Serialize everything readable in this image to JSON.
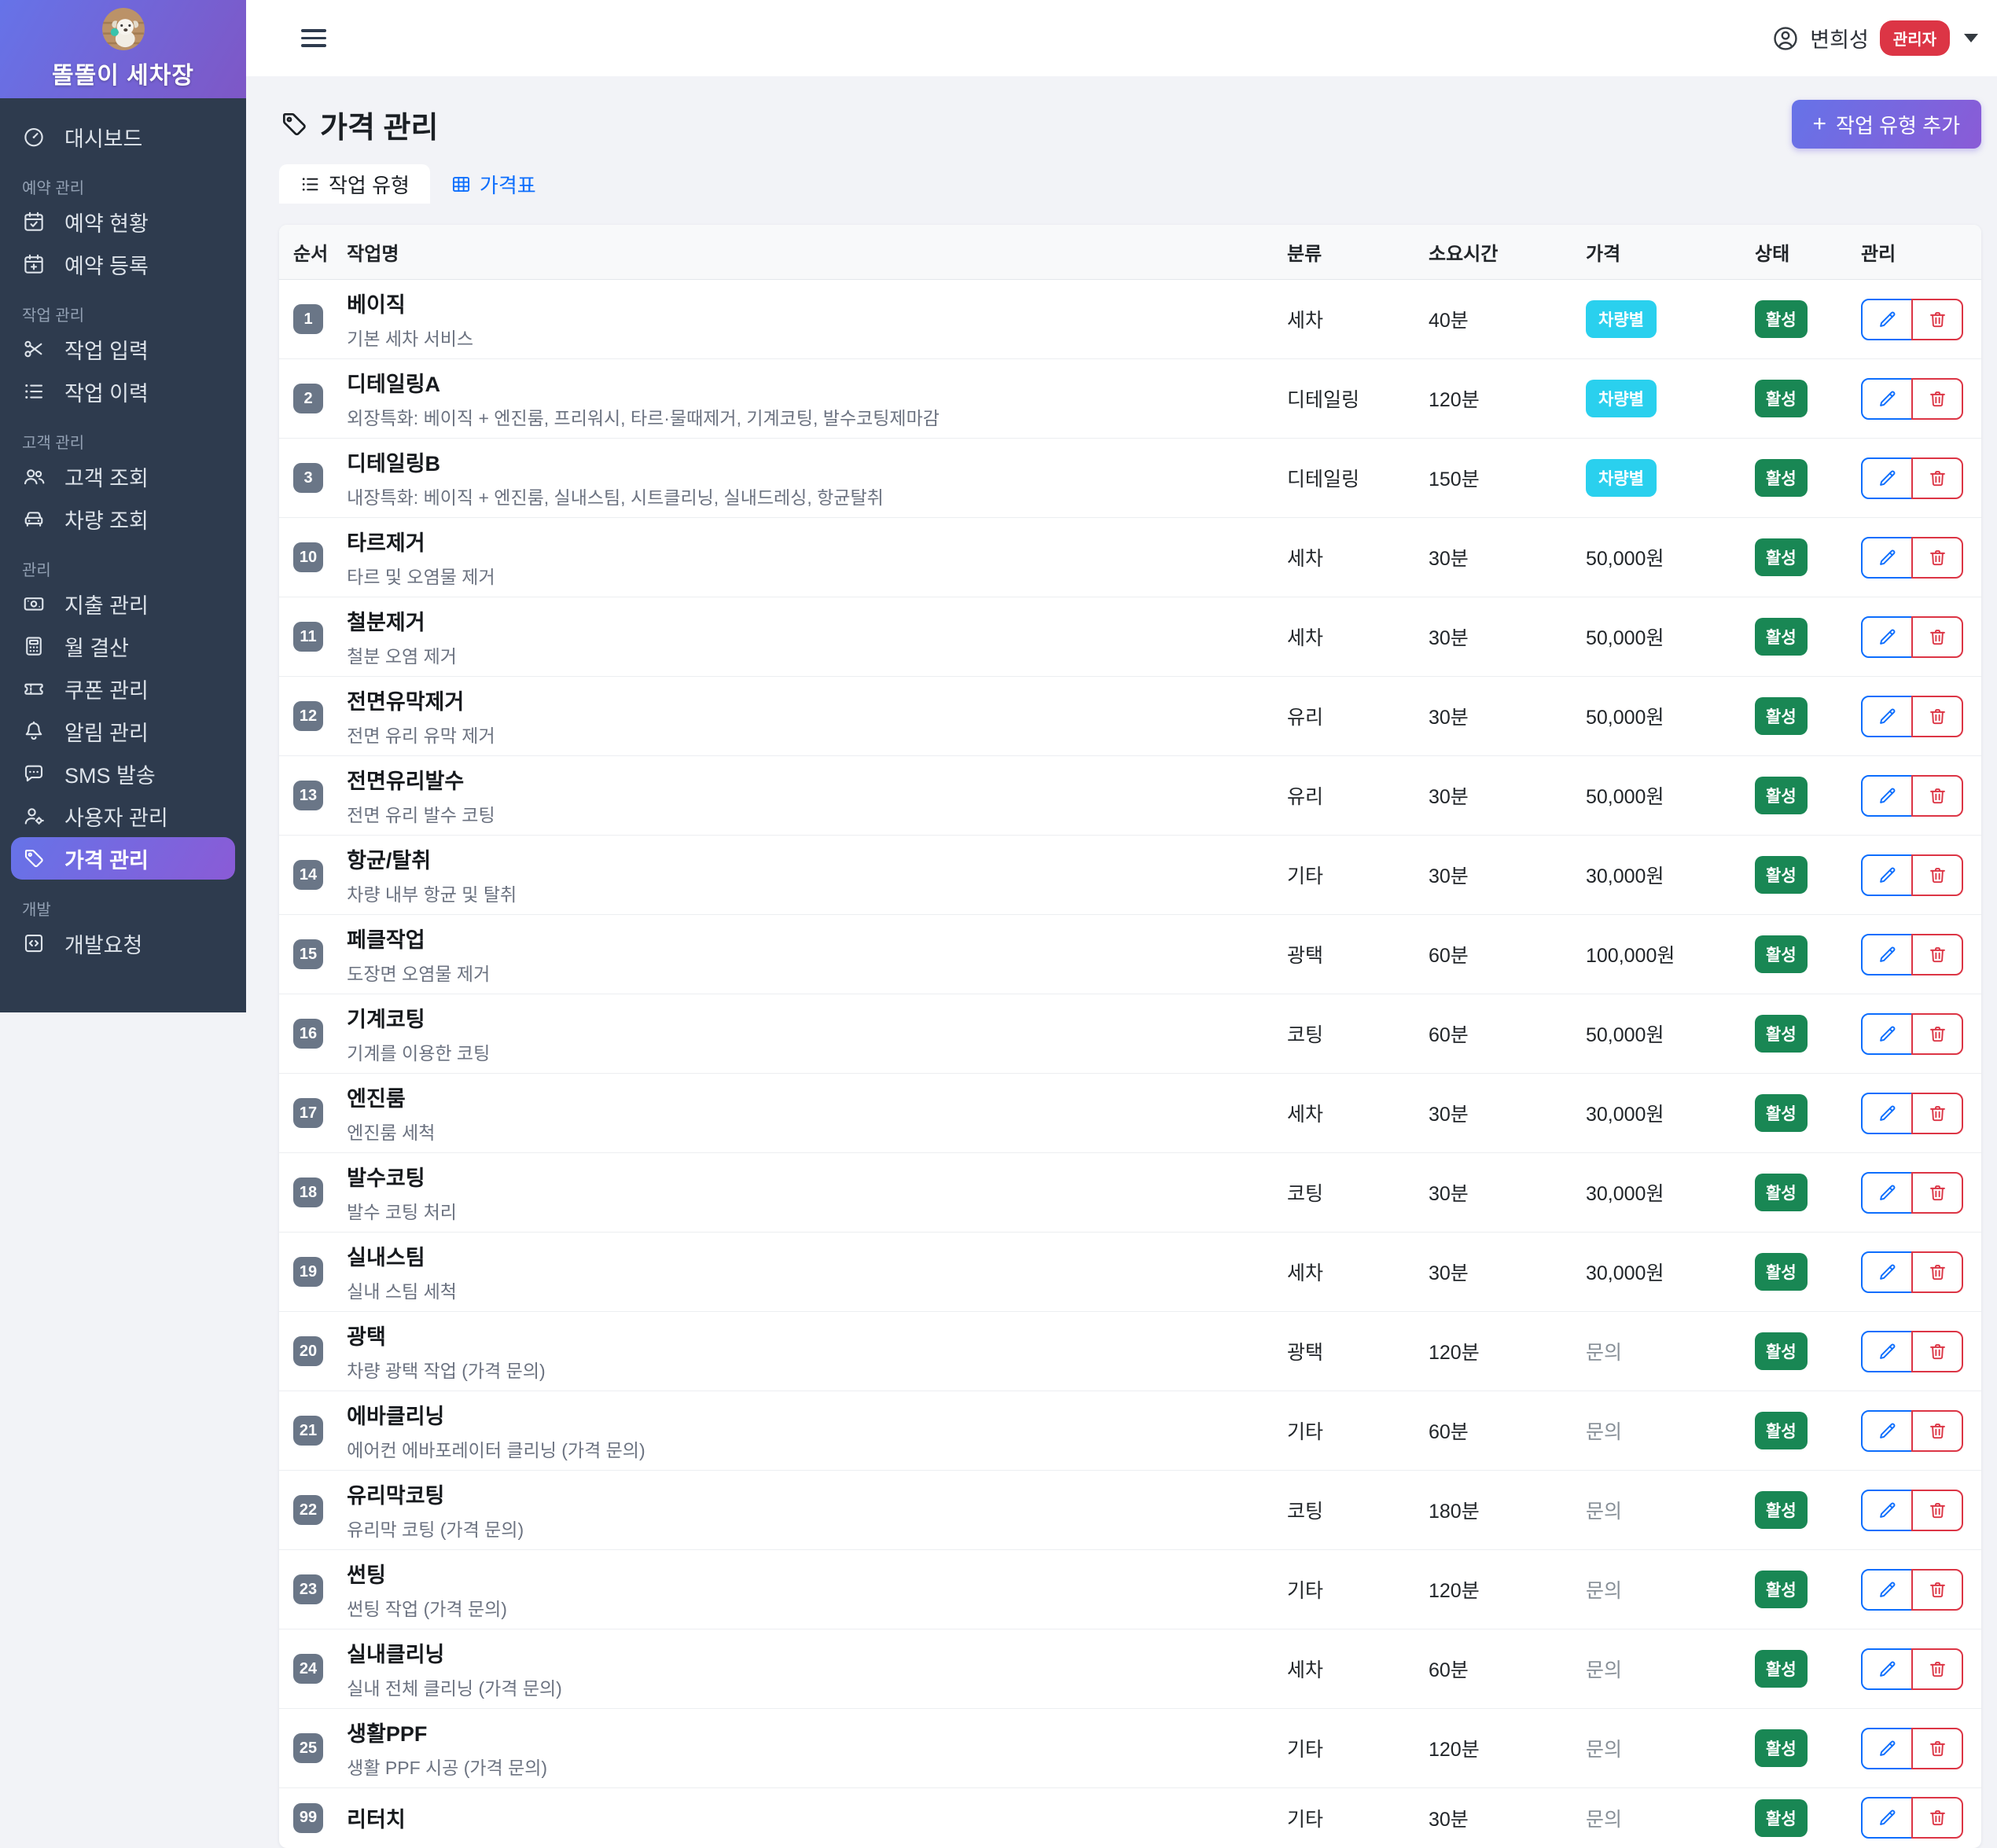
{
  "sidebar": {
    "brand_title": "똘똘이 세차장",
    "brand_avatar_icon": "dog-photo-avatar",
    "groups": [
      {
        "label": "",
        "items": [
          {
            "icon": "dashboard-icon",
            "label": "대시보드",
            "active": false
          }
        ]
      },
      {
        "label": "예약 관리",
        "items": [
          {
            "icon": "calendar-check-icon",
            "label": "예약 현황",
            "active": false
          },
          {
            "icon": "calendar-plus-icon",
            "label": "예약 등록",
            "active": false
          }
        ]
      },
      {
        "label": "작업 관리",
        "items": [
          {
            "icon": "scissors-icon",
            "label": "작업 입력",
            "active": false
          },
          {
            "icon": "list-icon",
            "label": "작업 이력",
            "active": false
          }
        ]
      },
      {
        "label": "고객 관리",
        "items": [
          {
            "icon": "people-icon",
            "label": "고객 조회",
            "active": false
          },
          {
            "icon": "car-icon",
            "label": "차량 조회",
            "active": false
          }
        ]
      },
      {
        "label": "관리",
        "items": [
          {
            "icon": "cash-icon",
            "label": "지출 관리",
            "active": false
          },
          {
            "icon": "calculator-icon",
            "label": "월 결산",
            "active": false
          },
          {
            "icon": "ticket-icon",
            "label": "쿠폰 관리",
            "active": false
          },
          {
            "icon": "bell-icon",
            "label": "알림 관리",
            "active": false
          },
          {
            "icon": "chat-icon",
            "label": "SMS 발송",
            "active": false
          },
          {
            "icon": "user-gear-icon",
            "label": "사용자 관리",
            "active": false
          },
          {
            "icon": "tag-icon",
            "label": "가격 관리",
            "active": true
          }
        ]
      },
      {
        "label": "개발",
        "items": [
          {
            "icon": "code-icon",
            "label": "개발요청",
            "active": false
          }
        ]
      }
    ]
  },
  "header": {
    "user_name": "변희성",
    "role_badge": "관리자"
  },
  "page": {
    "title": "가격 관리",
    "add_button_plus": "+",
    "add_button_label": "작업 유형 추가"
  },
  "tabs": [
    {
      "icon": "list-icon",
      "label": "작업 유형",
      "active": true
    },
    {
      "icon": "table-icon",
      "label": "가격표",
      "active": false
    }
  ],
  "table": {
    "columns": [
      "순서",
      "작업명",
      "분류",
      "소요시간",
      "가격",
      "상태",
      "관리"
    ],
    "status_active_label": "활성",
    "vehicle_badge_label": "차량별",
    "inquiry_label": "문의",
    "rows": [
      {
        "order": "1",
        "name": "베이직",
        "desc": "기본 세차 서비스",
        "category": "세차",
        "duration": "40분",
        "price_type": "badge",
        "price": "차량별"
      },
      {
        "order": "2",
        "name": "디테일링A",
        "desc": "외장특화: 베이직 + 엔진룸, 프리워시, 타르·물때제거, 기계코팅, 발수코팅제마감",
        "category": "디테일링",
        "duration": "120분",
        "price_type": "badge",
        "price": "차량별"
      },
      {
        "order": "3",
        "name": "디테일링B",
        "desc": "내장특화: 베이직 + 엔진룸, 실내스팀, 시트클리닝, 실내드레싱, 항균탈취",
        "category": "디테일링",
        "duration": "150분",
        "price_type": "badge",
        "price": "차량별"
      },
      {
        "order": "10",
        "name": "타르제거",
        "desc": "타르 및 오염물 제거",
        "category": "세차",
        "duration": "30분",
        "price_type": "amount",
        "price": "50,000원"
      },
      {
        "order": "11",
        "name": "철분제거",
        "desc": "철분 오염 제거",
        "category": "세차",
        "duration": "30분",
        "price_type": "amount",
        "price": "50,000원"
      },
      {
        "order": "12",
        "name": "전면유막제거",
        "desc": "전면 유리 유막 제거",
        "category": "유리",
        "duration": "30분",
        "price_type": "amount",
        "price": "50,000원"
      },
      {
        "order": "13",
        "name": "전면유리발수",
        "desc": "전면 유리 발수 코팅",
        "category": "유리",
        "duration": "30분",
        "price_type": "amount",
        "price": "50,000원"
      },
      {
        "order": "14",
        "name": "항균/탈취",
        "desc": "차량 내부 항균 및 탈취",
        "category": "기타",
        "duration": "30분",
        "price_type": "amount",
        "price": "30,000원"
      },
      {
        "order": "15",
        "name": "페클작업",
        "desc": "도장면 오염물 제거",
        "category": "광택",
        "duration": "60분",
        "price_type": "amount",
        "price": "100,000원"
      },
      {
        "order": "16",
        "name": "기계코팅",
        "desc": "기계를 이용한 코팅",
        "category": "코팅",
        "duration": "60분",
        "price_type": "amount",
        "price": "50,000원"
      },
      {
        "order": "17",
        "name": "엔진룸",
        "desc": "엔진룸 세척",
        "category": "세차",
        "duration": "30분",
        "price_type": "amount",
        "price": "30,000원"
      },
      {
        "order": "18",
        "name": "발수코팅",
        "desc": "발수 코팅 처리",
        "category": "코팅",
        "duration": "30분",
        "price_type": "amount",
        "price": "30,000원"
      },
      {
        "order": "19",
        "name": "실내스팀",
        "desc": "실내 스팀 세척",
        "category": "세차",
        "duration": "30분",
        "price_type": "amount",
        "price": "30,000원"
      },
      {
        "order": "20",
        "name": "광택",
        "desc": "차량 광택 작업 (가격 문의)",
        "category": "광택",
        "duration": "120분",
        "price_type": "inquiry",
        "price": "문의"
      },
      {
        "order": "21",
        "name": "에바클리닝",
        "desc": "에어컨 에바포레이터 클리닝 (가격 문의)",
        "category": "기타",
        "duration": "60분",
        "price_type": "inquiry",
        "price": "문의"
      },
      {
        "order": "22",
        "name": "유리막코팅",
        "desc": "유리막 코팅 (가격 문의)",
        "category": "코팅",
        "duration": "180분",
        "price_type": "inquiry",
        "price": "문의"
      },
      {
        "order": "23",
        "name": "썬팅",
        "desc": "썬팅 작업 (가격 문의)",
        "category": "기타",
        "duration": "120분",
        "price_type": "inquiry",
        "price": "문의"
      },
      {
        "order": "24",
        "name": "실내클리닝",
        "desc": "실내 전체 클리닝 (가격 문의)",
        "category": "세차",
        "duration": "60분",
        "price_type": "inquiry",
        "price": "문의"
      },
      {
        "order": "25",
        "name": "생활PPF",
        "desc": "생활 PPF 시공 (가격 문의)",
        "category": "기타",
        "duration": "120분",
        "price_type": "inquiry",
        "price": "문의"
      },
      {
        "order": "99",
        "name": "리터치",
        "desc": "",
        "category": "기타",
        "duration": "30분",
        "price_type": "inquiry",
        "price": "문의"
      }
    ]
  },
  "colors": {
    "accent_gradient_from": "#6673e8",
    "accent_gradient_to": "#8a5bd6",
    "sidebar_bg": "#2e3b4e",
    "status_green": "#198754",
    "vehicle_cyan": "#2ad0ee",
    "role_red": "#dc3545",
    "link_blue": "#0d6efd"
  }
}
